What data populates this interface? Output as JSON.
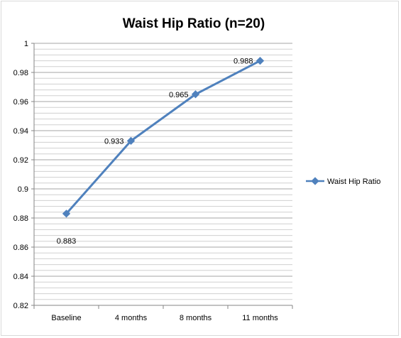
{
  "chart_data": {
    "type": "line",
    "title": "Waist Hip Ratio (n=20)",
    "categories": [
      "Baseline",
      "4 months",
      "8 months",
      "11 months"
    ],
    "series": [
      {
        "name": "Waist Hip Ratio",
        "values": [
          0.883,
          0.933,
          0.965,
          0.988
        ],
        "color": "#4f81bd"
      }
    ],
    "data_labels": [
      "0.883",
      "0.933",
      "0.965",
      "0.988"
    ],
    "ylim": [
      0.82,
      1
    ],
    "y_ticks": [
      "0.82",
      "0.84",
      "0.86",
      "0.88",
      "0.9",
      "0.92",
      "0.94",
      "0.96",
      "0.98",
      "1"
    ],
    "grid": true,
    "legend_position": "right"
  }
}
